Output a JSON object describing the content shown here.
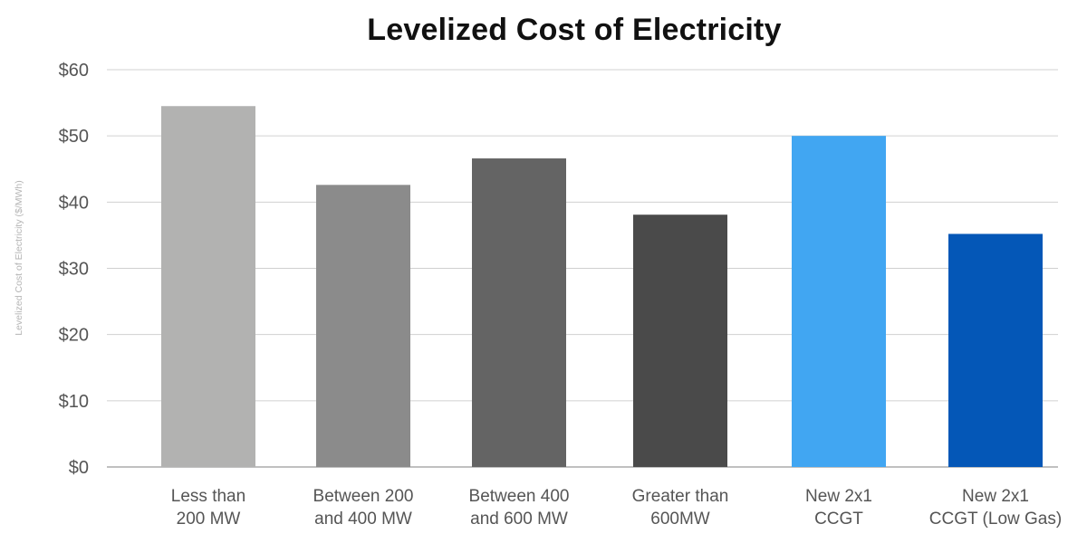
{
  "chart_data": {
    "type": "bar",
    "title": "Levelized Cost of Electricity",
    "ylabel": "Levelized Cost of Electricity ($/MWh)",
    "xlabel": "",
    "ylim": [
      0,
      60
    ],
    "yticks": [
      0,
      10,
      20,
      30,
      40,
      50,
      60
    ],
    "ytick_labels": [
      "$0",
      "$10",
      "$20",
      "$30",
      "$40",
      "$50",
      "$60"
    ],
    "grid": true,
    "legend": "none",
    "categories": [
      [
        "Less than",
        "200 MW"
      ],
      [
        "Between 200",
        "and 400 MW"
      ],
      [
        "Between 400",
        "and 600 MW"
      ],
      [
        "Greater than",
        "600MW"
      ],
      [
        "New 2x1",
        "CCGT"
      ],
      [
        "New 2x1",
        "CCGT (Low Gas)"
      ]
    ],
    "values": [
      54.5,
      42.6,
      46.6,
      38.1,
      50.0,
      35.2
    ],
    "colors": [
      "#b2b2b1",
      "#8b8b8b",
      "#646464",
      "#4a4a4a",
      "#41a6f2",
      "#0457b7"
    ]
  }
}
